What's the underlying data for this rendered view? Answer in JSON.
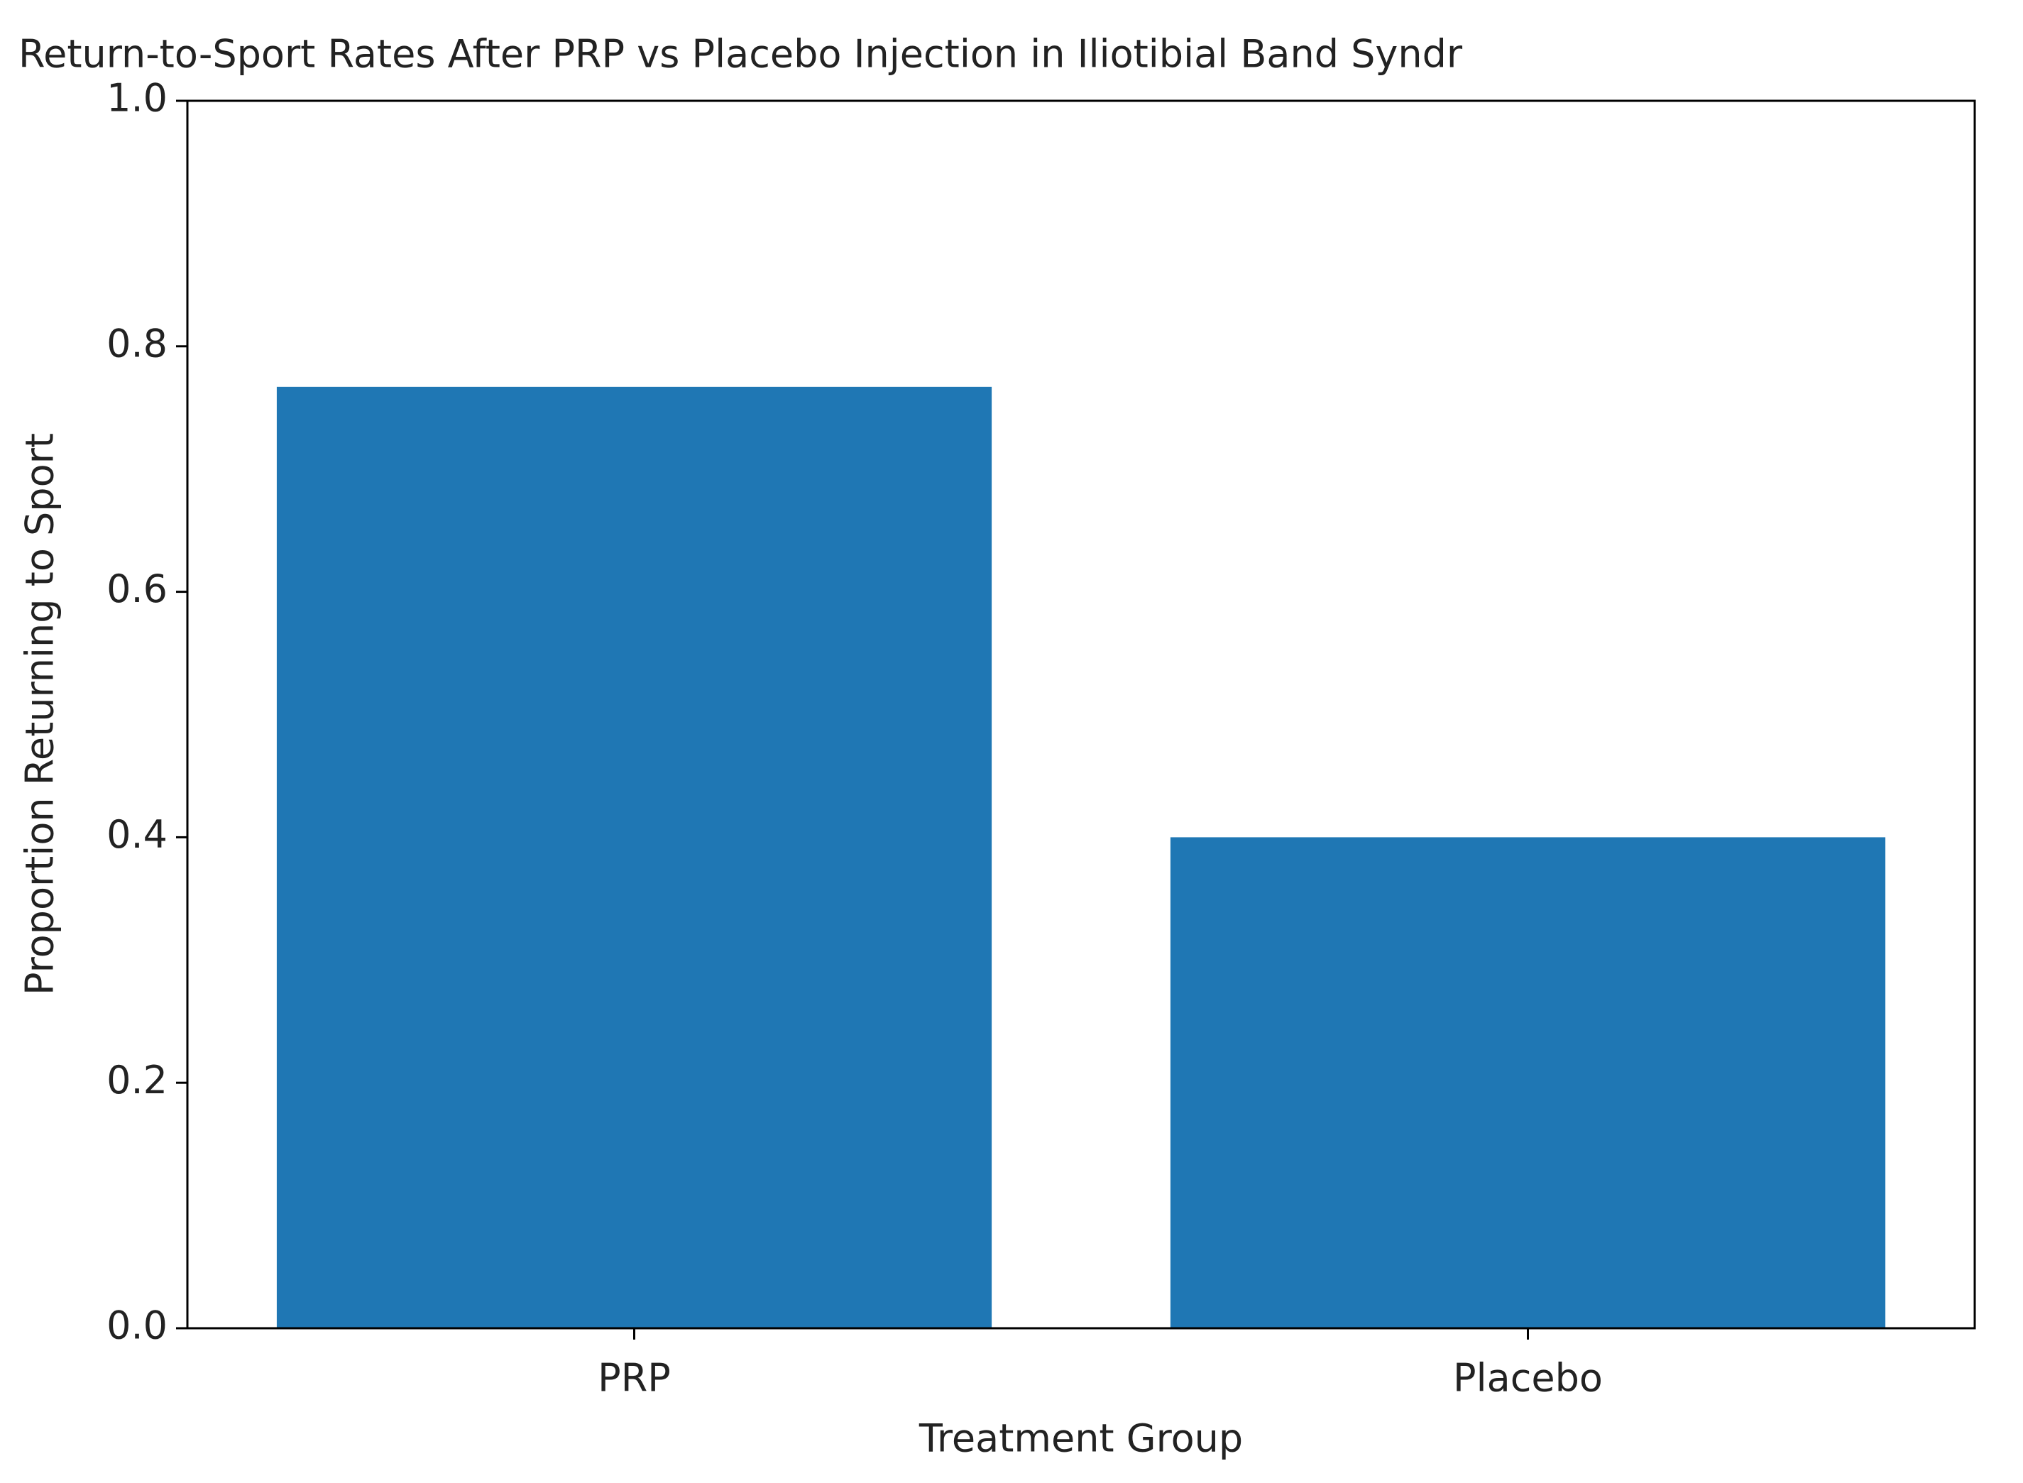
{
  "chart_data": {
    "type": "bar",
    "title": "Return-to-Sport Rates After PRP vs Placebo Injection in Iliotibial Band Syndr",
    "xlabel": "Treatment Group",
    "ylabel": "Proportion Returning to Sport",
    "categories": [
      "PRP",
      "Placebo"
    ],
    "values": [
      0.767,
      0.4
    ],
    "color": "#1f77b4",
    "ylim": [
      0,
      1
    ],
    "yticks": [
      {
        "value": 0,
        "label": "0.0"
      },
      0.2,
      0.4,
      0.6,
      0.8,
      {
        "value": 1,
        "label": "1.0"
      }
    ]
  }
}
